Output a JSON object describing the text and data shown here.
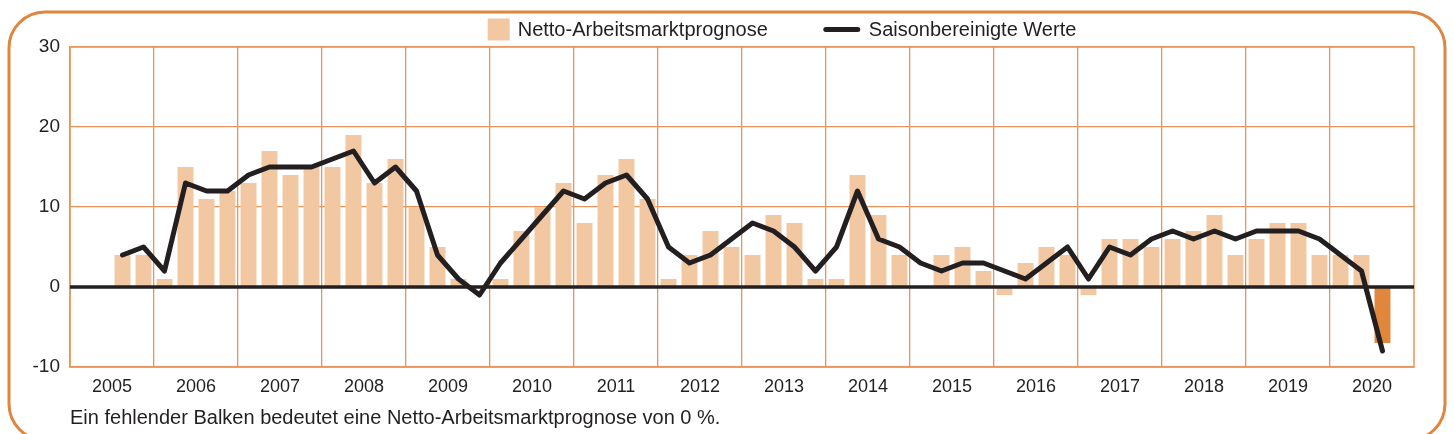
{
  "chart_data": {
    "type": "bar",
    "x": [
      2005.625,
      2005.875,
      2006.125,
      2006.375,
      2006.625,
      2006.875,
      2007.125,
      2007.375,
      2007.625,
      2007.875,
      2008.125,
      2008.375,
      2008.625,
      2008.875,
      2009.125,
      2009.375,
      2009.625,
      2009.875,
      2010.125,
      2010.375,
      2010.625,
      2010.875,
      2011.125,
      2011.375,
      2011.625,
      2011.875,
      2012.125,
      2012.375,
      2012.625,
      2012.875,
      2013.125,
      2013.375,
      2013.625,
      2013.875,
      2014.125,
      2014.375,
      2014.625,
      2014.875,
      2015.125,
      2015.375,
      2015.625,
      2015.875,
      2016.125,
      2016.375,
      2016.625,
      2016.875,
      2017.125,
      2017.375,
      2017.625,
      2017.875,
      2018.125,
      2018.375,
      2018.625,
      2018.875,
      2019.125,
      2019.375,
      2019.625,
      2019.875,
      2020.125,
      2020.375,
      2020.625
    ],
    "series": [
      {
        "name": "Netto-Arbeitsmarktprognose",
        "color": "#f2c8a3",
        "colors": [
          "#f2c8a3",
          "#f2c8a3",
          "#f2c8a3",
          "#f2c8a3",
          "#f2c8a3",
          "#f2c8a3",
          "#f2c8a3",
          "#f2c8a3",
          "#f2c8a3",
          "#f2c8a3",
          "#f2c8a3",
          "#f2c8a3",
          "#f2c8a3",
          "#f2c8a3",
          "#f2c8a3",
          "#f2c8a3",
          "#f2c8a3",
          "#f2c8a3",
          "#f2c8a3",
          "#f2c8a3",
          "#f2c8a3",
          "#f2c8a3",
          "#f2c8a3",
          "#f2c8a3",
          "#f2c8a3",
          "#f2c8a3",
          "#f2c8a3",
          "#f2c8a3",
          "#f2c8a3",
          "#f2c8a3",
          "#f2c8a3",
          "#f2c8a3",
          "#f2c8a3",
          "#f2c8a3",
          "#f2c8a3",
          "#f2c8a3",
          "#f2c8a3",
          "#f2c8a3",
          "#f2c8a3",
          "#f2c8a3",
          "#f2c8a3",
          "#f2c8a3",
          "#f2c8a3",
          "#f2c8a3",
          "#f2c8a3",
          "#f2c8a3",
          "#f2c8a3",
          "#f2c8a3",
          "#f2c8a3",
          "#f2c8a3",
          "#f2c8a3",
          "#f2c8a3",
          "#f2c8a3",
          "#f2c8a3",
          "#f2c8a3",
          "#f2c8a3",
          "#f2c8a3",
          "#f2c8a3",
          "#f2c8a3",
          "#f2c8a3",
          "#e0873d"
        ],
        "values": [
          4,
          4,
          1,
          15,
          11,
          12,
          13,
          17,
          14,
          15,
          15,
          19,
          13,
          16,
          10,
          5,
          1,
          0,
          1,
          7,
          10,
          13,
          8,
          14,
          16,
          11,
          1,
          4,
          7,
          5,
          4,
          9,
          8,
          1,
          1,
          14,
          9,
          4,
          0,
          4,
          5,
          2,
          -1,
          3,
          5,
          4,
          -1,
          6,
          6,
          5,
          6,
          7,
          9,
          4,
          6,
          8,
          8,
          4,
          4,
          4,
          -7
        ]
      },
      {
        "name": "Saisonbereinigte Werte",
        "type": "line",
        "color": "#231f20",
        "values": [
          4,
          5,
          2,
          13,
          12,
          12,
          14,
          15,
          15,
          15,
          16,
          17,
          13,
          15,
          12,
          4,
          1,
          -1,
          3,
          6,
          9,
          12,
          11,
          13,
          14,
          11,
          5,
          3,
          4,
          6,
          8,
          7,
          5,
          2,
          5,
          12,
          6,
          5,
          3,
          2,
          3,
          3,
          2,
          1,
          3,
          5,
          1,
          5,
          4,
          6,
          7,
          6,
          7,
          6,
          7,
          7,
          7,
          6,
          4,
          2,
          -8
        ]
      }
    ],
    "xlim": [
      2005,
      2021
    ],
    "xticks": [
      {
        "value": 2005.5,
        "label": "2005"
      },
      {
        "value": 2006,
        "label": null
      },
      {
        "value": 2006.5,
        "label": "2006"
      },
      {
        "value": 2007,
        "label": null
      },
      {
        "value": 2007.5,
        "label": "2007"
      },
      {
        "value": 2008,
        "label": null
      },
      {
        "value": 2008.5,
        "label": "2008"
      },
      {
        "value": 2009,
        "label": null
      },
      {
        "value": 2009.5,
        "label": "2009"
      },
      {
        "value": 2010,
        "label": null
      },
      {
        "value": 2010.5,
        "label": "2010"
      },
      {
        "value": 2011,
        "label": null
      },
      {
        "value": 2011.5,
        "label": "2011"
      },
      {
        "value": 2012,
        "label": null
      },
      {
        "value": 2012.5,
        "label": "2012"
      },
      {
        "value": 2013,
        "label": null
      },
      {
        "value": 2013.5,
        "label": "2013"
      },
      {
        "value": 2014,
        "label": null
      },
      {
        "value": 2014.5,
        "label": "2014"
      },
      {
        "value": 2015,
        "label": null
      },
      {
        "value": 2015.5,
        "label": "2015"
      },
      {
        "value": 2016,
        "label": null
      },
      {
        "value": 2016.5,
        "label": "2016"
      },
      {
        "value": 2017,
        "label": null
      },
      {
        "value": 2017.5,
        "label": "2017"
      },
      {
        "value": 2018,
        "label": null
      },
      {
        "value": 2018.5,
        "label": "2018"
      },
      {
        "value": 2019,
        "label": null
      },
      {
        "value": 2019.5,
        "label": "2019"
      },
      {
        "value": 2020,
        "label": null
      },
      {
        "value": 2020.5,
        "label": "2020"
      }
    ],
    "ylim": [
      -10,
      30
    ],
    "yticks": [
      -10,
      0,
      10,
      20,
      30
    ],
    "grid": true,
    "legend": "top",
    "ref_lines": [
      {
        "axis": "y",
        "value": 0,
        "color": "#231f20"
      }
    ],
    "annotations": [
      "Ein fehlender Balken bedeutet eine Netto-Arbeitsmarktprognose von 0 %."
    ]
  }
}
